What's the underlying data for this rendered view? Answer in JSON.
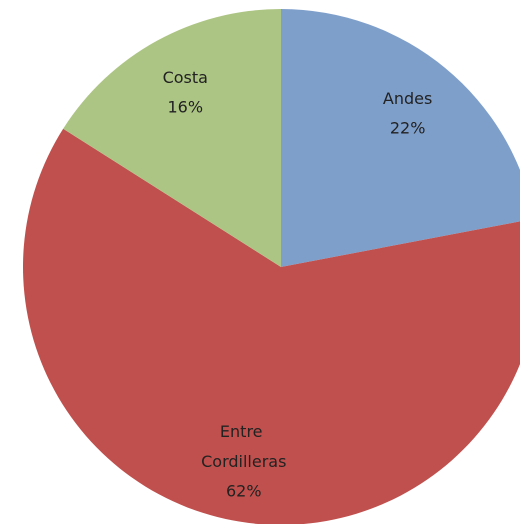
{
  "chart_data": {
    "type": "pie",
    "categories": [
      "Andes",
      "Entre Cordilleras",
      "Costa"
    ],
    "values": [
      22,
      62,
      16
    ],
    "value_labels": [
      "22%",
      "62%",
      "16%"
    ],
    "colors": [
      "#7f9fcb",
      "#c0504d",
      "#adc584"
    ]
  }
}
